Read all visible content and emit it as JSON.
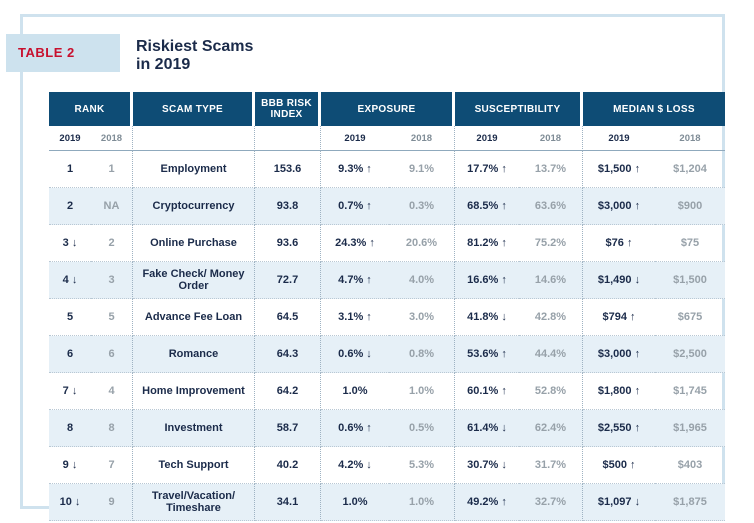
{
  "label": "TABLE 2",
  "title_line1": "Riskiest Scams",
  "title_line2": "in 2019",
  "headers": {
    "rank": "RANK",
    "scam_type": "SCAM TYPE",
    "risk_index": "BBB RISK INDEX",
    "exposure": "EXPOSURE",
    "susceptibility": "SUSCEPTIBILITY",
    "median_loss": "MEDIAN $ LOSS"
  },
  "subheaders": {
    "y2019": "2019",
    "y2018": "2018"
  },
  "rows": [
    {
      "rank": "1",
      "rank2018": "1",
      "type": "Employment",
      "risk": "153.6",
      "exp19": "9.3% ↑",
      "exp18": "9.1%",
      "sus19": "17.7% ↑",
      "sus18": "13.7%",
      "loss19": "$1,500 ↑",
      "loss18": "$1,204"
    },
    {
      "rank": "2",
      "rank2018": "NA",
      "type": "Cryptocurrency",
      "risk": "93.8",
      "exp19": "0.7% ↑",
      "exp18": "0.3%",
      "sus19": "68.5% ↑",
      "sus18": "63.6%",
      "loss19": "$3,000 ↑",
      "loss18": "$900"
    },
    {
      "rank": "3 ↓",
      "rank2018": "2",
      "type": "Online Purchase",
      "risk": "93.6",
      "exp19": "24.3% ↑",
      "exp18": "20.6%",
      "sus19": "81.2% ↑",
      "sus18": "75.2%",
      "loss19": "$76 ↑",
      "loss18": "$75"
    },
    {
      "rank": "4 ↓",
      "rank2018": "3",
      "type": "Fake Check/ Money Order",
      "risk": "72.7",
      "exp19": "4.7% ↑",
      "exp18": "4.0%",
      "sus19": "16.6% ↑",
      "sus18": "14.6%",
      "loss19": "$1,490 ↓",
      "loss18": "$1,500"
    },
    {
      "rank": "5",
      "rank2018": "5",
      "type": "Advance Fee Loan",
      "risk": "64.5",
      "exp19": "3.1% ↑",
      "exp18": "3.0%",
      "sus19": "41.8% ↓",
      "sus18": "42.8%",
      "loss19": "$794 ↑",
      "loss18": "$675"
    },
    {
      "rank": "6",
      "rank2018": "6",
      "type": "Romance",
      "risk": "64.3",
      "exp19": "0.6% ↓",
      "exp18": "0.8%",
      "sus19": "53.6% ↑",
      "sus18": "44.4%",
      "loss19": "$3,000 ↑",
      "loss18": "$2,500"
    },
    {
      "rank": "7 ↓",
      "rank2018": "4",
      "type": "Home Improvement",
      "risk": "64.2",
      "exp19": "1.0%",
      "exp18": "1.0%",
      "sus19": "60.1% ↑",
      "sus18": "52.8%",
      "loss19": "$1,800 ↑",
      "loss18": "$1,745"
    },
    {
      "rank": "8",
      "rank2018": "8",
      "type": "Investment",
      "risk": "58.7",
      "exp19": "0.6% ↑",
      "exp18": "0.5%",
      "sus19": "61.4% ↓",
      "sus18": "62.4%",
      "loss19": "$2,550 ↑",
      "loss18": "$1,965"
    },
    {
      "rank": "9 ↓",
      "rank2018": "7",
      "type": "Tech Support",
      "risk": "40.2",
      "exp19": "4.2% ↓",
      "exp18": "5.3%",
      "sus19": "30.7% ↓",
      "sus18": "31.7%",
      "loss19": "$500 ↑",
      "loss18": "$403"
    },
    {
      "rank": "10 ↓",
      "rank2018": "9",
      "type": "Travel/Vacation/ Timeshare",
      "risk": "34.1",
      "exp19": "1.0%",
      "exp18": "1.0%",
      "sus19": "49.2% ↑",
      "sus18": "32.7%",
      "loss19": "$1,097 ↓",
      "loss18": "$1,875"
    }
  ]
}
